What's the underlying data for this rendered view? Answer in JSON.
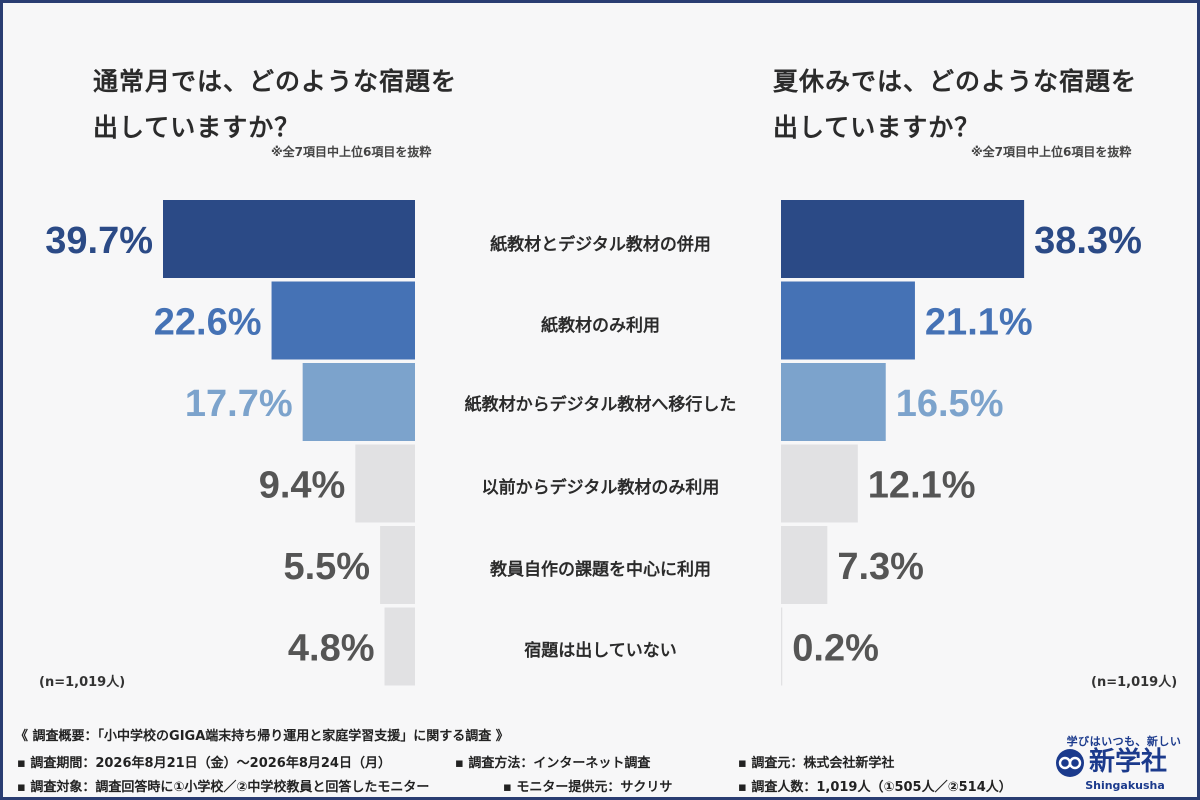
{
  "left_panel": {
    "title": "通常月では、どのような宿題を\n出していますか？",
    "note": "※全7項目中上位6項目を抜粋",
    "n_label": "(n=1,019人)"
  },
  "right_panel": {
    "title": "夏休みでは、どのような宿題を\n出していますか？",
    "note": "※全7項目中上位6項目を抜粋",
    "n_label": "(n=1,019人)"
  },
  "chart_data": {
    "type": "bar",
    "categories": [
      "紙教材とデジタル教材の併用",
      "紙教材のみ利用",
      "紙教材からデジタル教材へ移行した",
      "以前からデジタル教材のみ利用",
      "教員自作の課題を中心に利用",
      "宿題は出していない"
    ],
    "series": [
      {
        "name": "通常月",
        "values": [
          39.7,
          22.6,
          17.7,
          9.4,
          5.5,
          4.8
        ],
        "labels": [
          "39.7%",
          "22.6%",
          "17.7%",
          "9.4%",
          "5.5%",
          "4.8%"
        ]
      },
      {
        "name": "夏休み",
        "values": [
          38.3,
          21.1,
          16.5,
          12.1,
          7.3,
          0.2
        ],
        "labels": [
          "38.3%",
          "21.1%",
          "16.5%",
          "12.1%",
          "7.3%",
          "0.2%"
        ]
      }
    ],
    "bar_colors": [
      "#2b4a86",
      "#4572b5",
      "#7ca3cc",
      "#e1e1e3",
      "#e1e1e3",
      "#e1e1e3"
    ],
    "label_colors": [
      "#2b4a86",
      "#4572b5",
      "#7ca3cc",
      "#555555",
      "#555555",
      "#555555"
    ],
    "xlim": [
      0,
      40
    ]
  },
  "footer": {
    "summary": "《 調査概要：「小中学校のGIGA端末持ち帰り運用と家庭学習支援」に関する調査 》",
    "period": "▪ 調査期間：2026年8月21日（金）〜2026年8月24日（月）",
    "method": "▪ 調査方法：インターネット調査",
    "source": "▪ 調査元：株式会社新学社",
    "target": "▪ 調査対象：調査回答時に①小学校／②中学校教員と回答したモニター",
    "provider": "▪ モニター提供元：サクリサ",
    "count": "▪ 調査人数：1,019人（①505人／②514人）"
  },
  "logo": {
    "tagline": "学びはいつも、新しい",
    "name": "新学社",
    "english": "Shingakusha"
  }
}
